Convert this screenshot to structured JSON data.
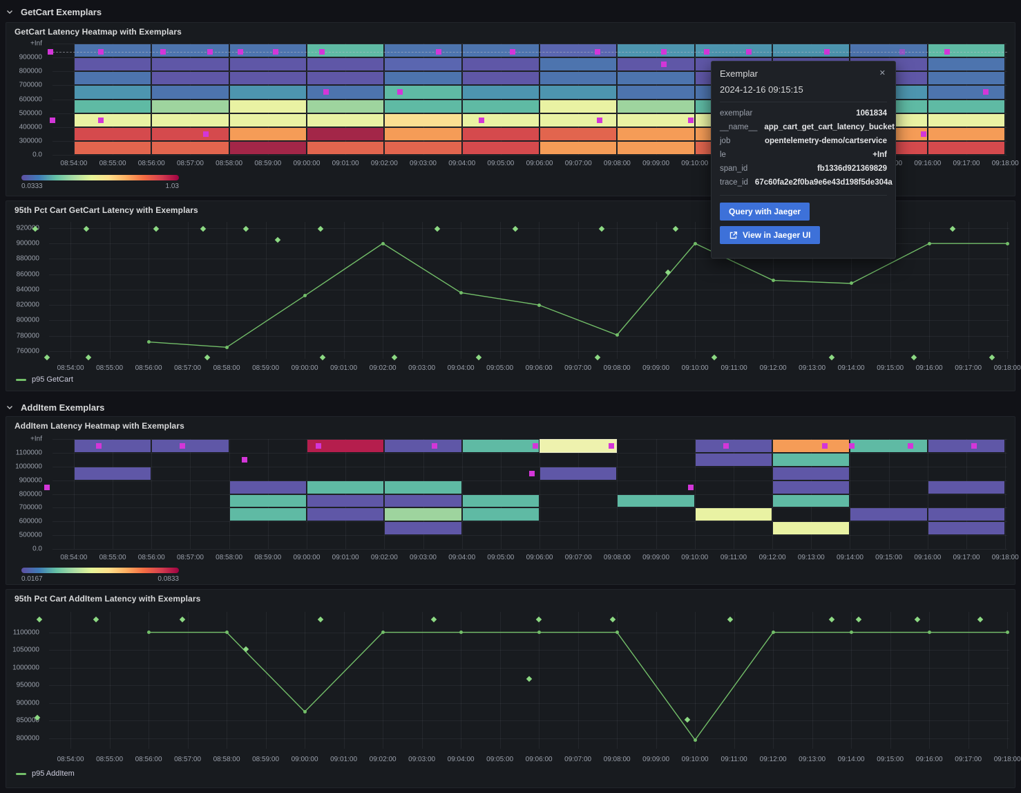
{
  "rows": [
    {
      "label": "GetCart Exemplars"
    },
    {
      "label": "AddItem Exemplars"
    }
  ],
  "colors": {
    "background": "#111217",
    "panel": "#181b1f",
    "accent_green": "#73bf69",
    "diamond_green": "#8cd983",
    "exemplar_magenta": "#d336d8",
    "button_blue": "#3d71d9",
    "palette": {
      "P1": "#5f57a7",
      "P2": "#5a66b0",
      "B1": "#4d74ae",
      "B2": "#4d95af",
      "G1": "#5fbaa4",
      "G2": "#9ed49e",
      "Y1": "#e9f2a3",
      "Y1h": "#eef2ae",
      "Y2": "#fadf92",
      "O1": "#f59c57",
      "O2": "#e2654e",
      "R1": "#d54a4d",
      "R2": "#a32648",
      "R2b": "#b51e4d"
    },
    "gradient": [
      "#5e4fa2",
      "#3f7cb8",
      "#66c2a5",
      "#abdda4",
      "#e6f598",
      "#fee08b",
      "#fdae61",
      "#f46d43",
      "#d53e4f",
      "#9e0142"
    ]
  },
  "axis": {
    "x_tick_labels": [
      "08:54:00",
      "08:55:00",
      "08:56:00",
      "08:57:00",
      "08:58:00",
      "08:59:00",
      "09:00:00",
      "09:01:00",
      "09:02:00",
      "09:03:00",
      "09:04:00",
      "09:05:00",
      "09:06:00",
      "09:07:00",
      "09:08:00",
      "09:09:00",
      "09:10:00",
      "09:11:00",
      "09:12:00",
      "09:13:00",
      "09:14:00",
      "09:15:00",
      "09:16:00",
      "09:17:00",
      "09:18:00"
    ],
    "x_domain_min": -0.55,
    "x_domain_max": 24.05
  },
  "tooltip": {
    "title": "Exemplar",
    "close_label": "✕",
    "timestamp": "2024-12-16 09:15:15",
    "fields": [
      {
        "k": "exemplar",
        "v": "1061834"
      },
      {
        "k": "__name__",
        "v": "app_cart_get_cart_latency_bucket"
      },
      {
        "k": "job",
        "v": "opentelemetry-demo/cartservice"
      },
      {
        "k": "le",
        "v": "+Inf"
      },
      {
        "k": "span_id",
        "v": "fb1336d921369829"
      },
      {
        "k": "trace_id",
        "v": "67c60fa2e2f0ba9e6e43d198f5de304a"
      }
    ],
    "buttons": [
      {
        "label": "Query with Jaeger",
        "icon": null
      },
      {
        "label": "View in Jaeger UI",
        "icon": "external-link"
      }
    ]
  },
  "chart_data": [
    {
      "id": "getcart-heatmap",
      "type": "heatmap",
      "title": "GetCart Latency Heatmap with Exemplars",
      "y_tick_labels": [
        "+Inf",
        "900000",
        "800000",
        "700000",
        "600000",
        "500000",
        "400000",
        "300000",
        "0.0"
      ],
      "col_offsets": [
        0,
        2,
        4,
        6,
        8,
        10,
        12,
        14,
        16,
        18,
        20,
        22
      ],
      "col_span_min": 2,
      "grid": [
        [
          "B1",
          "B1",
          "B1",
          "G1",
          "B1",
          "B1",
          "P2",
          "B2",
          "B2",
          "B2",
          "B1",
          "G1"
        ],
        [
          "P1",
          "P1",
          "P1",
          "P1",
          "P2",
          "P1",
          "B1",
          "P1",
          "P1",
          "P1",
          "P1",
          "B1"
        ],
        [
          "B1",
          "P1",
          "P1",
          "P1",
          "B1",
          "P1",
          "B1",
          "B1",
          "P1",
          "P1",
          "P1",
          "B1"
        ],
        [
          "B2",
          "B1",
          "B2",
          "B1",
          "G1",
          "B2",
          "B2",
          "B1",
          "B1",
          "B2",
          "B2",
          "B1"
        ],
        [
          "G1",
          "G2",
          "Y1",
          "G2",
          "G1",
          "G1",
          "Y1",
          "G2",
          "G1",
          "G2",
          "G1",
          "G1"
        ],
        [
          "Y1",
          "Y1",
          "Y1",
          "Y1",
          "Y2",
          "Y1",
          "Y1",
          "Y1",
          "Y1",
          "Y1",
          "Y1",
          "Y1"
        ],
        [
          "R1",
          "R1",
          "O1",
          "R2",
          "O1",
          "R1",
          "O2",
          "O1",
          "O1",
          "R1",
          "O1",
          "O1"
        ],
        [
          "O2",
          "O2",
          "R2",
          "O2",
          "O2",
          "R1",
          "O1",
          "O1",
          "O2",
          "O2",
          "R1",
          "R1"
        ]
      ],
      "guide_row": 0.62,
      "exemplars": [
        {
          "m": -0.6,
          "r": 0.62
        },
        {
          "m": 0.7,
          "r": 0.62
        },
        {
          "m": 2.3,
          "r": 0.62
        },
        {
          "m": 3.5,
          "r": 0.62
        },
        {
          "m": 4.3,
          "r": 0.62
        },
        {
          "m": 5.2,
          "r": 0.62
        },
        {
          "m": 6.4,
          "r": 0.62
        },
        {
          "m": 9.4,
          "r": 0.62
        },
        {
          "m": 11.3,
          "r": 0.62
        },
        {
          "m": 13.5,
          "r": 0.62
        },
        {
          "m": 15.2,
          "r": 0.62
        },
        {
          "m": 16.3,
          "r": 0.62
        },
        {
          "m": 17.4,
          "r": 0.62
        },
        {
          "m": 19.4,
          "r": 0.62
        },
        {
          "m": 21.35,
          "r": 0.62,
          "dim": true
        },
        {
          "m": 22.5,
          "r": 0.62
        },
        {
          "m": -0.55,
          "r": 5.5
        },
        {
          "m": 0.7,
          "r": 5.5
        },
        {
          "m": 3.4,
          "r": 6.5
        },
        {
          "m": 6.5,
          "r": 3.5
        },
        {
          "m": 8.4,
          "r": 3.5
        },
        {
          "m": 10.5,
          "r": 5.5
        },
        {
          "m": 13.55,
          "r": 5.5
        },
        {
          "m": 15.2,
          "r": 1.5
        },
        {
          "m": 15.9,
          "r": 5.5
        },
        {
          "m": 21.9,
          "r": 6.5
        },
        {
          "m": 23.5,
          "r": 3.5
        }
      ],
      "legend": {
        "min": "0.0333",
        "max": "1.03"
      }
    },
    {
      "id": "getcart-line",
      "type": "line",
      "title": "95th Pct Cart GetCart Latency with Exemplars",
      "y_domain": [
        750000,
        928000
      ],
      "y_ticks": [
        {
          "label": "920000",
          "v": 920000
        },
        {
          "label": "900000",
          "v": 900000
        },
        {
          "label": "880000",
          "v": 880000
        },
        {
          "label": "860000",
          "v": 860000
        },
        {
          "label": "840000",
          "v": 840000
        },
        {
          "label": "820000",
          "v": 820000
        },
        {
          "label": "800000",
          "v": 800000
        },
        {
          "label": "780000",
          "v": 780000
        },
        {
          "label": "760000",
          "v": 760000
        }
      ],
      "series": [
        {
          "name": "p95 GetCart",
          "x_min_offsets": [
            2,
            4,
            6,
            8,
            10,
            12,
            14,
            16,
            18,
            20,
            22,
            24
          ],
          "values": [
            772000,
            765000,
            832000,
            900000,
            836000,
            820000,
            781000,
            900000,
            852000,
            848000,
            900000,
            900000
          ]
        }
      ],
      "exemplars": [
        {
          "m": -0.9,
          "v": 919000
        },
        {
          "m": 0.4,
          "v": 919000
        },
        {
          "m": 2.2,
          "v": 919000
        },
        {
          "m": 3.4,
          "v": 919000
        },
        {
          "m": 4.5,
          "v": 919000
        },
        {
          "m": 6.4,
          "v": 919000
        },
        {
          "m": 9.4,
          "v": 919000
        },
        {
          "m": 11.4,
          "v": 919000
        },
        {
          "m": 13.6,
          "v": 919000
        },
        {
          "m": 15.5,
          "v": 919000
        },
        {
          "m": 22.6,
          "v": 919000
        },
        {
          "m": 5.3,
          "v": 905000
        },
        {
          "m": 15.3,
          "v": 862000
        },
        {
          "m": -0.6,
          "v": 752000
        },
        {
          "m": 0.45,
          "v": 752000
        },
        {
          "m": 3.5,
          "v": 752000
        },
        {
          "m": 6.45,
          "v": 752000
        },
        {
          "m": 8.3,
          "v": 752000
        },
        {
          "m": 10.45,
          "v": 752000
        },
        {
          "m": 13.5,
          "v": 752000
        },
        {
          "m": 16.5,
          "v": 752000
        },
        {
          "m": 19.5,
          "v": 752000
        },
        {
          "m": 21.6,
          "v": 752000
        },
        {
          "m": 23.6,
          "v": 752000
        }
      ]
    },
    {
      "id": "additem-heatmap",
      "type": "heatmap",
      "title": "AddItem Latency Heatmap with Exemplars",
      "y_tick_labels": [
        "+Inf",
        "1100000",
        "1000000",
        "900000",
        "800000",
        "700000",
        "600000",
        "500000",
        "0.0"
      ],
      "col_offsets": [
        0,
        2,
        4,
        6,
        8,
        10,
        12,
        14,
        16,
        18,
        20,
        22
      ],
      "col_span_min": 2,
      "grid": [
        [
          "P1",
          "P1",
          "",
          "R2b",
          "P1",
          "G1",
          "Y1h",
          "",
          "P1",
          "O1",
          "G1",
          "P1"
        ],
        [
          "",
          "",
          "",
          "",
          "",
          "",
          "",
          "",
          "P1",
          "G1",
          "",
          ""
        ],
        [
          "P1",
          "",
          "",
          "",
          "",
          "",
          "P1",
          "",
          "",
          "P1",
          "",
          ""
        ],
        [
          "",
          "",
          "P1",
          "G1",
          "G1",
          "",
          "",
          "",
          "",
          "P1",
          "",
          "P1"
        ],
        [
          "",
          "",
          "G1",
          "P1",
          "P1",
          "G1",
          "",
          "G1",
          "",
          "G1",
          "",
          ""
        ],
        [
          "",
          "",
          "G1",
          "P1",
          "G2",
          "G1",
          "",
          "",
          "Y1",
          "",
          "P1",
          "P1"
        ],
        [
          "",
          "",
          "",
          "",
          "P1",
          "",
          "",
          "",
          "",
          "Y1",
          "",
          "P1"
        ],
        [
          "",
          "",
          "",
          "",
          "",
          "",
          "",
          "",
          "",
          "",
          "",
          ""
        ]
      ],
      "guide_row": null,
      "exemplars": [
        {
          "m": 0.65,
          "r": 0.5
        },
        {
          "m": 2.8,
          "r": 0.5
        },
        {
          "m": 6.3,
          "r": 0.5
        },
        {
          "m": 9.3,
          "r": 0.5
        },
        {
          "m": 11.9,
          "r": 0.5
        },
        {
          "m": 13.85,
          "r": 0.5
        },
        {
          "m": 16.8,
          "r": 0.5
        },
        {
          "m": 19.35,
          "r": 0.5
        },
        {
          "m": 20.05,
          "r": 0.5
        },
        {
          "m": 21.55,
          "r": 0.5
        },
        {
          "m": 23.2,
          "r": 0.5
        },
        {
          "m": -0.7,
          "r": 3.5
        },
        {
          "m": 4.4,
          "r": 1.5
        },
        {
          "m": 11.8,
          "r": 2.5
        },
        {
          "m": 15.9,
          "r": 3.5
        }
      ],
      "legend": {
        "min": "0.0167",
        "max": "0.0833"
      }
    },
    {
      "id": "additem-line",
      "type": "line",
      "title": "95th Pct Cart AddItem Latency with Exemplars",
      "y_domain": [
        770000,
        1158000
      ],
      "y_ticks": [
        {
          "label": "1100000",
          "v": 1100000
        },
        {
          "label": "1050000",
          "v": 1050000
        },
        {
          "label": "1000000",
          "v": 1000000
        },
        {
          "label": "950000",
          "v": 950000
        },
        {
          "label": "900000",
          "v": 900000
        },
        {
          "label": "850000",
          "v": 850000
        },
        {
          "label": "800000",
          "v": 800000
        }
      ],
      "series": [
        {
          "name": "p95 AddItem",
          "x_min_offsets": [
            2,
            4,
            6,
            8,
            10,
            12,
            14,
            16,
            18,
            20,
            22,
            24
          ],
          "values": [
            1100000,
            1100000,
            875000,
            1100000,
            1100000,
            1100000,
            1100000,
            795000,
            1100000,
            1100000,
            1100000,
            1100000
          ]
        }
      ],
      "exemplars": [
        {
          "m": -0.8,
          "v": 1137000
        },
        {
          "m": 0.66,
          "v": 1137000
        },
        {
          "m": 2.86,
          "v": 1137000
        },
        {
          "m": 6.4,
          "v": 1137000
        },
        {
          "m": 9.3,
          "v": 1137000
        },
        {
          "m": 12.0,
          "v": 1137000
        },
        {
          "m": 13.9,
          "v": 1137000
        },
        {
          "m": 16.9,
          "v": 1137000
        },
        {
          "m": 19.5,
          "v": 1137000
        },
        {
          "m": 20.2,
          "v": 1137000
        },
        {
          "m": 21.7,
          "v": 1137000
        },
        {
          "m": 23.3,
          "v": 1137000
        },
        {
          "m": -0.85,
          "v": 858000
        },
        {
          "m": 4.5,
          "v": 1052000
        },
        {
          "m": 11.75,
          "v": 968000
        },
        {
          "m": 15.8,
          "v": 852000
        }
      ]
    }
  ]
}
